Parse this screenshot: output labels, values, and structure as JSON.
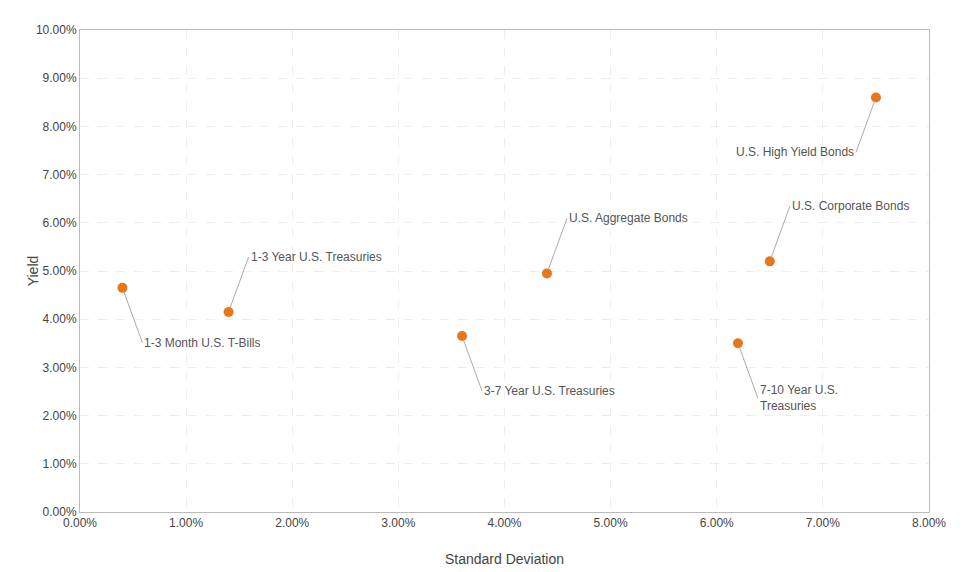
{
  "chart_data": {
    "type": "scatter",
    "x": [
      0.004,
      0.014,
      0.036,
      0.044,
      0.062,
      0.065,
      0.075
    ],
    "y": [
      0.0465,
      0.0415,
      0.0365,
      0.0495,
      0.035,
      0.052,
      0.086
    ],
    "labels": [
      "1-3 Month U.S. T-Bills",
      "1-3 Year U.S. Treasuries",
      "3-7 Year U.S. Treasuries",
      "U.S. Aggregate Bonds",
      "7-10 Year U.S.\nTreasuries",
      "U.S. Corporate Bonds",
      "U.S. High Yield Bonds"
    ],
    "color": "#E8761A",
    "xlabel": "Standard Deviation",
    "ylabel": "Yield",
    "xlim": [
      0.0,
      0.08
    ],
    "ylim": [
      0.0,
      0.1
    ],
    "xticks": [
      {
        "value": 0.0,
        "label": "0.00%"
      },
      {
        "value": 0.01,
        "label": "1.00%"
      },
      {
        "value": 0.02,
        "label": "2.00%"
      },
      {
        "value": 0.03,
        "label": "3.00%"
      },
      {
        "value": 0.04,
        "label": "4.00%"
      },
      {
        "value": 0.05,
        "label": "5.00%"
      },
      {
        "value": 0.06,
        "label": "6.00%"
      },
      {
        "value": 0.07,
        "label": "7.00%"
      },
      {
        "value": 0.08,
        "label": "8.00%"
      }
    ],
    "yticks": [
      {
        "value": 0.0,
        "label": "0.00%"
      },
      {
        "value": 0.01,
        "label": "1.00%"
      },
      {
        "value": 0.02,
        "label": "2.00%"
      },
      {
        "value": 0.03,
        "label": "3.00%"
      },
      {
        "value": 0.04,
        "label": "4.00%"
      },
      {
        "value": 0.05,
        "label": "5.00%"
      },
      {
        "value": 0.06,
        "label": "6.00%"
      },
      {
        "value": 0.07,
        "label": "7.00%"
      },
      {
        "value": 0.08,
        "label": "8.00%"
      },
      {
        "value": 0.09,
        "label": "9.00%"
      },
      {
        "value": 0.1,
        "label": "10.00%"
      }
    ],
    "grid": true
  }
}
